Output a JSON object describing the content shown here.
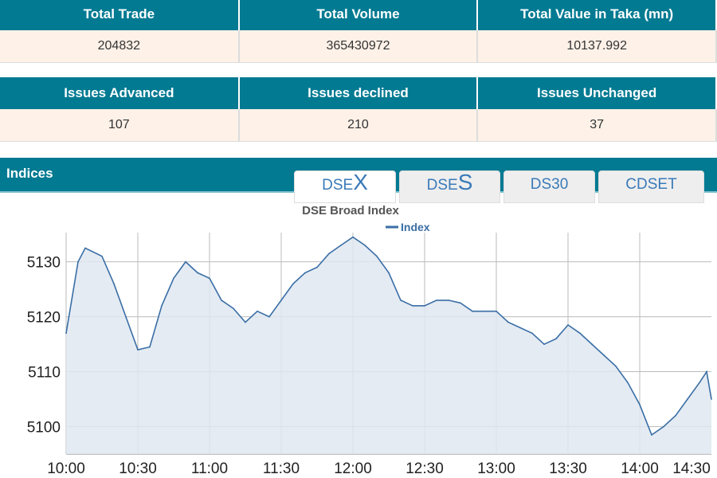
{
  "summary1": {
    "headers": [
      "Total Trade",
      "Total Volume",
      "Total Value in Taka (mn)"
    ],
    "values": [
      "204832",
      "365430972",
      "10137.992"
    ]
  },
  "summary2": {
    "headers": [
      "Issues Advanced",
      "Issues declined",
      "Issues Unchanged"
    ],
    "values": [
      "107",
      "210",
      "37"
    ]
  },
  "indices": {
    "title": "Indices",
    "tabs": [
      {
        "prefix": "DSE",
        "suffix": "X"
      },
      {
        "prefix": "DSE",
        "suffix": "S"
      },
      {
        "prefix": "DS30",
        "suffix": ""
      },
      {
        "prefix": "CDSET",
        "suffix": ""
      }
    ],
    "active_tab": 0
  },
  "colors": {
    "header": "#027a92",
    "line": "#3a6ea5",
    "fill": "#dfe7f1"
  },
  "chart_data": {
    "type": "area",
    "title": "DSE Broad Index",
    "legend": [
      "Index"
    ],
    "legend_position": "top-center",
    "ylim": [
      5095,
      5138.5
    ],
    "yticks": [
      5100,
      5110,
      5120,
      5130
    ],
    "xticks": [
      "10:00",
      "10:30",
      "11:00",
      "11:30",
      "12:00",
      "12:30",
      "13:00",
      "13:30",
      "14:00",
      "14:30"
    ],
    "x_minutes": [
      0,
      5,
      8,
      15,
      20,
      25,
      30,
      35,
      40,
      45,
      50,
      55,
      60,
      65,
      70,
      75,
      80,
      85,
      90,
      95,
      100,
      105,
      110,
      115,
      120,
      125,
      130,
      135,
      140,
      145,
      150,
      155,
      160,
      165,
      170,
      175,
      180,
      185,
      190,
      195,
      200,
      205,
      210,
      215,
      220,
      225,
      230,
      235,
      240,
      245,
      250,
      255,
      260,
      265,
      268,
      270
    ],
    "values": [
      5117,
      5130,
      5132.5,
      5131,
      5126,
      5120,
      5114,
      5114.5,
      5122,
      5127,
      5130,
      5128,
      5127,
      5123,
      5121.5,
      5119,
      5121,
      5120,
      5123,
      5126,
      5128,
      5129,
      5131.5,
      5133,
      5134.5,
      5133,
      5131,
      5128,
      5123,
      5122,
      5122,
      5123,
      5123,
      5122.5,
      5121,
      5121,
      5121,
      5119,
      5118,
      5117,
      5115,
      5116,
      5118.5,
      5117,
      5115,
      5113,
      5111,
      5108,
      5104,
      5098.5,
      5100,
      5102,
      5105,
      5108,
      5110,
      5105
    ]
  }
}
